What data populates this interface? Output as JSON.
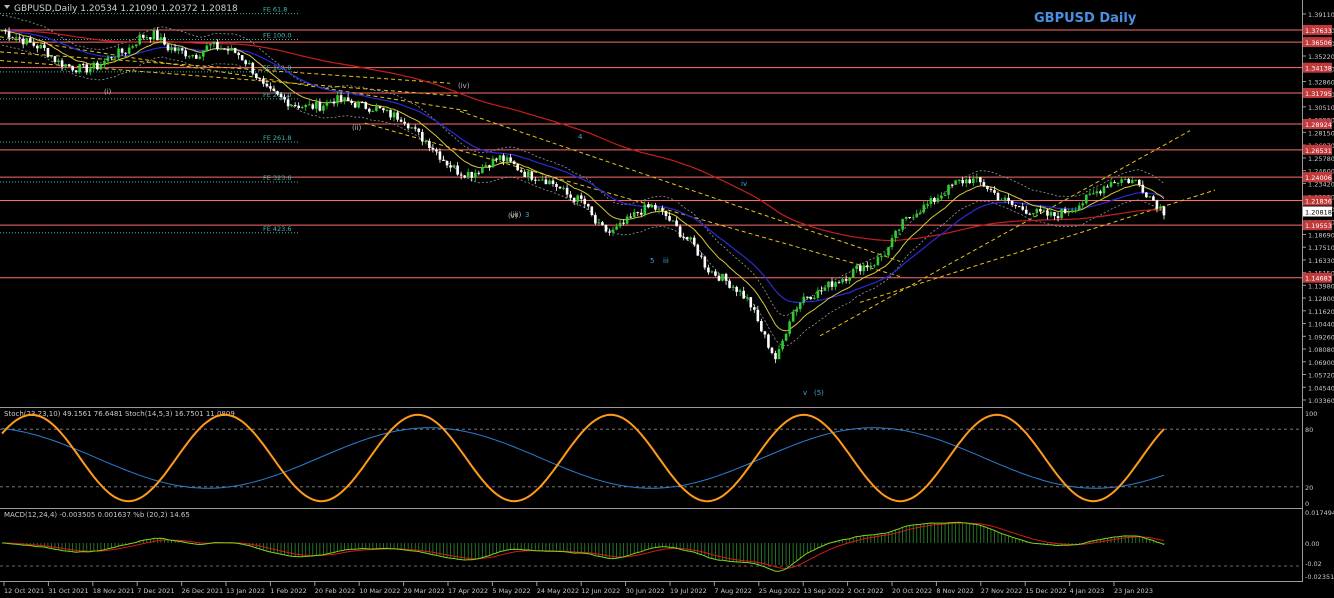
{
  "window": {
    "header": "GBPUSD,Daily  1.20534 1.21090 1.20372 1.20818",
    "title": "GBPUSD Daily",
    "corner_icon": "chevron-down-icon"
  },
  "colors": {
    "background": "#000000",
    "bull": "#32cd32",
    "bear": "#ffffff",
    "level": "#ff6b6b",
    "fib": "#3fb8af",
    "ema_short": "#d8c83a",
    "ema_mid": "#2a2ad8",
    "ema_long": "#c81e1e",
    "bands": "#9a9a9a",
    "channel": "#e6c21a",
    "stoch_main": "#ff9a1a",
    "stoch_signal": "#2a7fd4",
    "macd_line": "#7fd41a",
    "macd_signal": "#d41a1a",
    "wave": "#3fa7d6",
    "label_bg": "#c0393b"
  },
  "chart_data": {
    "type": "candlestick",
    "symbol": "GBPUSD",
    "timeframe": "Daily",
    "ohlc_last": {
      "open": 1.20534,
      "high": 1.2109,
      "low": 1.20372,
      "close": 1.20818
    },
    "x_dates": [
      "12 Oct 2021",
      "31 Oct 2021",
      "18 Nov 2021",
      "7 Dec 2021",
      "26 Dec 2021",
      "13 Jan 2022",
      "1 Feb 2022",
      "20 Feb 2022",
      "10 Mar 2022",
      "29 Mar 2022",
      "17 Apr 2022",
      "5 May 2022",
      "24 May 2022",
      "12 Jun 2022",
      "30 Jun 2022",
      "19 Jul 2022",
      "7 Aug 2022",
      "25 Aug 2022",
      "13 Sep 2022",
      "2 Oct 2022",
      "20 Oct 2022",
      "8 Nov 2022",
      "27 Nov 2022",
      "15 Dec 2022",
      "4 Jan 2023",
      "23 Jan 2023"
    ],
    "y_ticks": [
      "1.39110",
      "1.37620",
      "1.36410",
      "1.35220",
      "1.34040",
      "1.32860",
      "1.31680",
      "1.30510",
      "1.29330",
      "1.28150",
      "1.26970",
      "1.25780",
      "1.24600",
      "1.23420",
      "1.22230",
      "1.21050",
      "1.19870",
      "1.18690",
      "1.17510",
      "1.16330",
      "1.15150",
      "1.13980",
      "1.12800",
      "1.11620",
      "1.10440",
      "1.09260",
      "1.08080",
      "1.06900",
      "1.05720",
      "1.04540",
      "1.03360"
    ],
    "price_labels": [
      "1.37633",
      "1.36506",
      "1.34138",
      "1.31795",
      "1.28924",
      "1.26531",
      "1.24006",
      "1.21836",
      "1.20818",
      "1.19553",
      "1.14683"
    ],
    "horizontal_levels": [
      1.37633,
      1.36506,
      1.34138,
      1.31795,
      1.28924,
      1.26531,
      1.24006,
      1.21836,
      1.19553,
      1.14683
    ],
    "fib_labels": [
      "FE 61.8",
      "FE 100.0",
      "FE 161.8",
      "FE 200.0",
      "FE 261.8",
      "FE 323.6",
      "FE 423.6"
    ],
    "fib_values": [
      1.3915,
      1.3675,
      1.3375,
      1.3125,
      1.2725,
      1.2355,
      1.1885
    ],
    "wave_labels": [
      "(i)",
      "(ii)",
      "(iii)",
      "(iv)",
      "(v)",
      "3",
      "4",
      "5",
      "iii",
      "iv",
      "v",
      "(5)"
    ],
    "close_series": [
      1.376,
      1.37,
      1.364,
      1.359,
      1.347,
      1.342,
      1.34,
      1.343,
      1.353,
      1.357,
      1.37,
      1.372,
      1.36,
      1.356,
      1.353,
      1.362,
      1.359,
      1.355,
      1.342,
      1.321,
      1.314,
      1.308,
      1.305,
      1.306,
      1.312,
      1.31,
      1.306,
      1.304,
      1.298,
      1.295,
      1.28,
      1.27,
      1.255,
      1.245,
      1.243,
      1.252,
      1.258,
      1.251,
      1.242,
      1.24,
      1.233,
      1.222,
      1.218,
      1.195,
      1.188,
      1.197,
      1.208,
      1.213,
      1.204,
      1.189,
      1.177,
      1.155,
      1.147,
      1.138,
      1.125,
      1.095,
      1.07,
      1.112,
      1.13,
      1.133,
      1.142,
      1.148,
      1.157,
      1.16,
      1.172,
      1.196,
      1.208,
      1.215,
      1.225,
      1.235,
      1.238,
      1.233,
      1.222,
      1.214,
      1.21,
      1.206,
      1.204,
      1.209,
      1.216,
      1.225,
      1.235,
      1.238,
      1.236,
      1.222,
      1.2082
    ],
    "indicators": {
      "stochastic": {
        "label": "Stoch(23,23,10) 49.1561 76.6481  Stoch(14,5,3) 16.7501 11.0809",
        "scale": [
          "100",
          "80",
          "20",
          "0"
        ]
      },
      "macd": {
        "label": "MACD(12,24,4) -0.003505 0.001637  %b (20,2) 14.65",
        "scale": [
          "0.017494",
          "0.00",
          "-0.02",
          "-0.023513"
        ]
      }
    }
  }
}
